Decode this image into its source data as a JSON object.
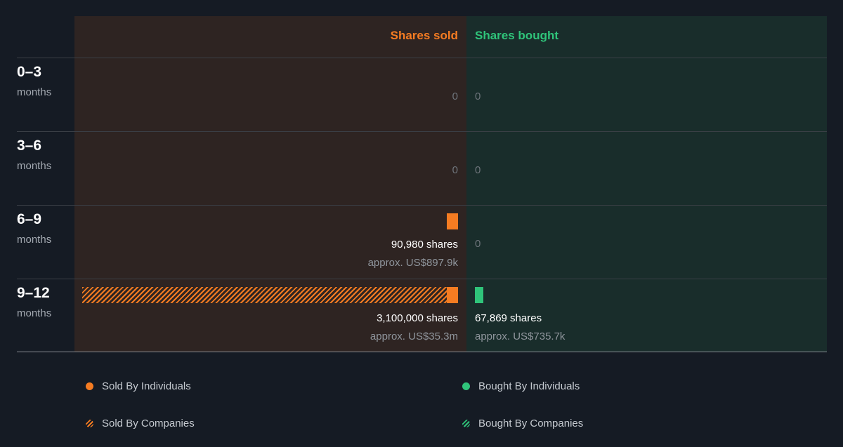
{
  "colors": {
    "sold": "#f57c22",
    "bought": "#2fc47a",
    "background": "#151b24"
  },
  "headers": {
    "sold": "Shares sold",
    "bought": "Shares bought"
  },
  "rows": [
    {
      "period": "0–3",
      "unit": "months",
      "sold": {
        "value_text": "0"
      },
      "bought": {
        "value_text": "0"
      }
    },
    {
      "period": "3–6",
      "unit": "months",
      "sold": {
        "value_text": "0"
      },
      "bought": {
        "value_text": "0"
      }
    },
    {
      "period": "6–9",
      "unit": "months",
      "sold": {
        "shares_text": "90,980 shares",
        "approx_text": "approx. US$897.9k"
      },
      "bought": {
        "value_text": "0"
      }
    },
    {
      "period": "9–12",
      "unit": "months",
      "sold": {
        "shares_text": "3,100,000 shares",
        "approx_text": "approx. US$35.3m"
      },
      "bought": {
        "shares_text": "67,869 shares",
        "approx_text": "approx. US$735.7k"
      }
    }
  ],
  "legend": {
    "sold_individuals": "Sold By Individuals",
    "sold_companies": "Sold By Companies",
    "bought_individuals": "Bought By Individuals",
    "bought_companies": "Bought By Companies"
  },
  "chart_data": {
    "type": "bar",
    "categories": [
      "0–3 months",
      "3–6 months",
      "6–9 months",
      "9–12 months"
    ],
    "series": [
      {
        "name": "Sold By Individuals",
        "values": [
          0,
          0,
          90980,
          null
        ]
      },
      {
        "name": "Sold By Companies",
        "values": [
          0,
          0,
          0,
          null
        ]
      },
      {
        "name": "Bought By Individuals",
        "values": [
          0,
          0,
          0,
          67869
        ]
      },
      {
        "name": "Bought By Companies",
        "values": [
          0,
          0,
          0,
          0
        ]
      }
    ],
    "totals_sold": [
      0,
      0,
      90980,
      3100000
    ],
    "totals_bought": [
      0,
      0,
      0,
      67869
    ],
    "value_usd_sold": [
      "",
      "",
      "approx. US$897.9k",
      "approx. US$35.3m"
    ],
    "value_usd_bought": [
      "",
      "",
      "",
      "approx. US$735.7k"
    ]
  }
}
